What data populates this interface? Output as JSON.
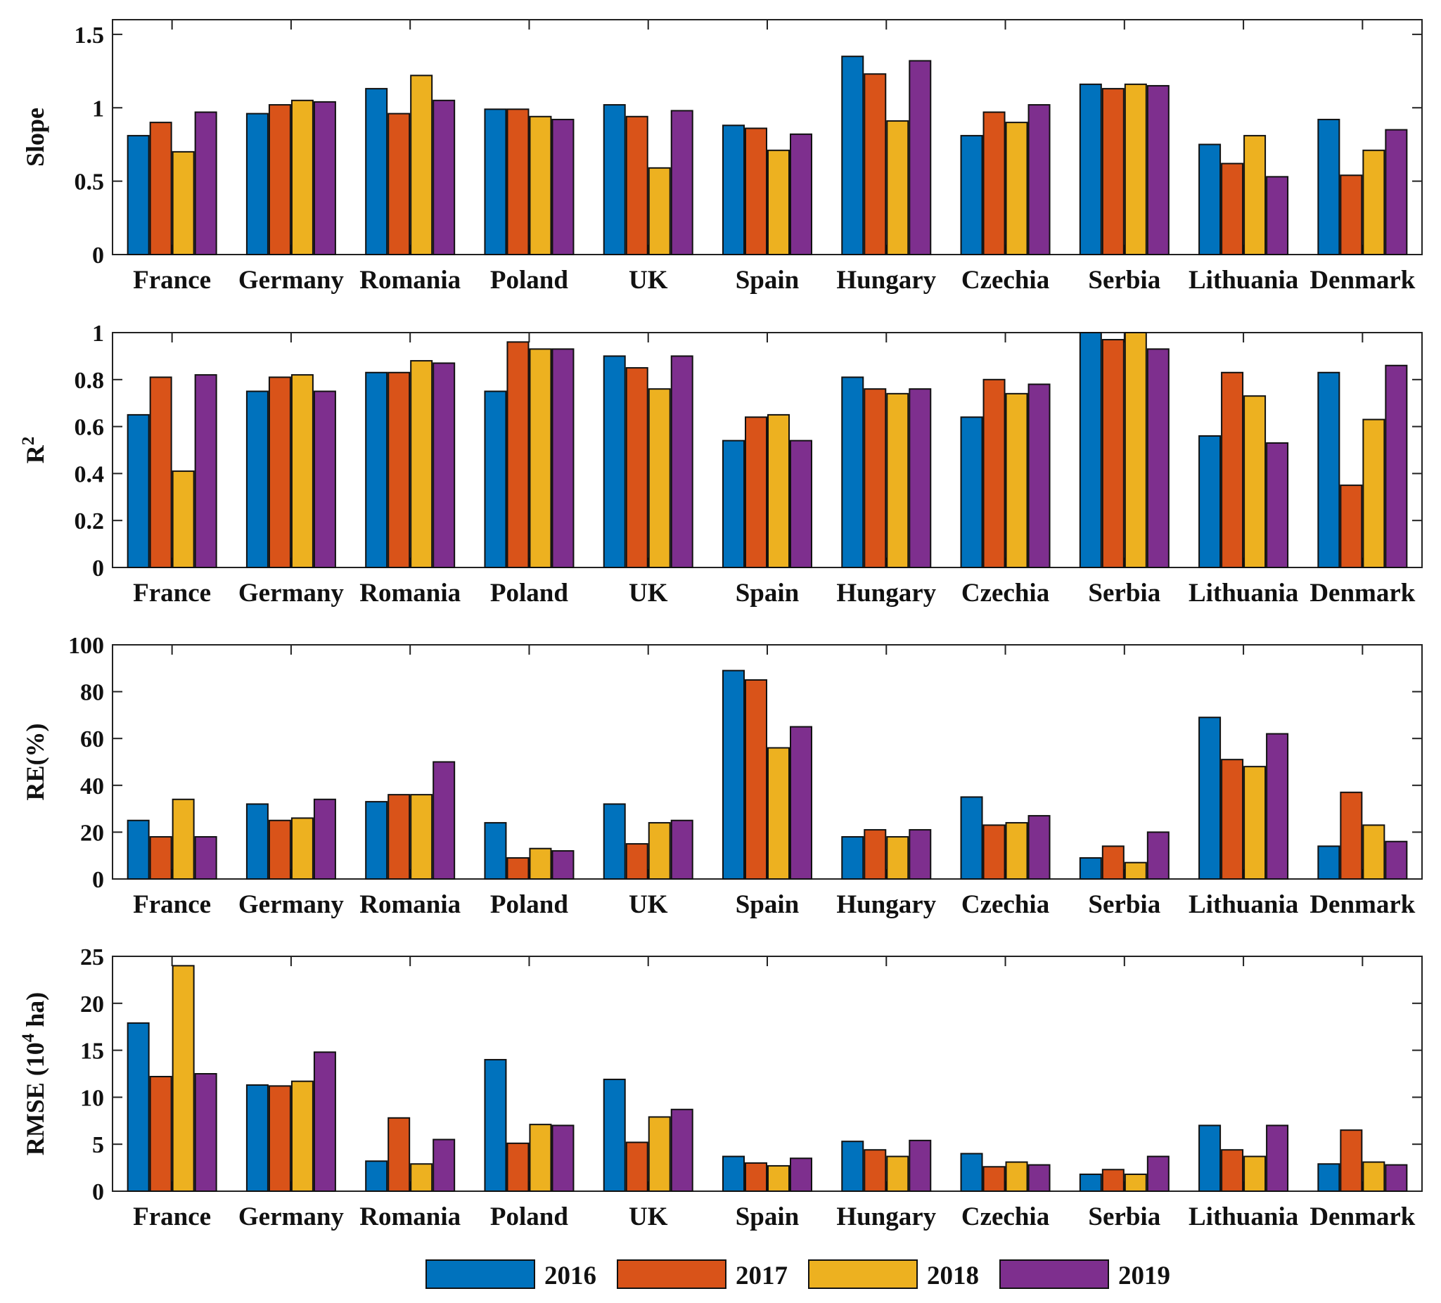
{
  "chart_data": {
    "type": "bar",
    "categories": [
      "France",
      "Germany",
      "Romania",
      "Poland",
      "UK",
      "Spain",
      "Hungary",
      "Czechia",
      "Serbia",
      "Lithuania",
      "Denmark"
    ],
    "legend": {
      "placement": "bottom-center",
      "entries": [
        {
          "name": "2016",
          "color": "#0072BD"
        },
        {
          "name": "2017",
          "color": "#D95319"
        },
        {
          "name": "2018",
          "color": "#EDB120"
        },
        {
          "name": "2019",
          "color": "#7E2F8E"
        }
      ]
    },
    "panels": [
      {
        "id": "slope",
        "ylabel": "Slope",
        "ylim": [
          0,
          1.6
        ],
        "yticks": [
          0,
          0.5,
          1,
          1.5
        ],
        "ytick_labels": [
          "0",
          "0.5",
          "1",
          "1.5"
        ],
        "series": [
          {
            "name": "2016",
            "values": [
              0.81,
              0.96,
              1.13,
              0.99,
              1.02,
              0.88,
              1.35,
              0.81,
              1.16,
              0.75,
              0.92
            ]
          },
          {
            "name": "2017",
            "values": [
              0.9,
              1.02,
              0.96,
              0.99,
              0.94,
              0.86,
              1.23,
              0.97,
              1.13,
              0.62,
              0.54
            ]
          },
          {
            "name": "2018",
            "values": [
              0.7,
              1.05,
              1.22,
              0.94,
              0.59,
              0.71,
              0.91,
              0.9,
              1.16,
              0.81,
              0.71
            ]
          },
          {
            "name": "2019",
            "values": [
              0.97,
              1.04,
              1.05,
              0.92,
              0.98,
              0.82,
              1.32,
              1.02,
              1.15,
              0.53,
              0.85
            ]
          }
        ]
      },
      {
        "id": "r2",
        "ylabel": "R",
        "ylabel_sup": "2",
        "ylim": [
          0,
          1
        ],
        "yticks": [
          0,
          0.2,
          0.4,
          0.6,
          0.8,
          1
        ],
        "ytick_labels": [
          "0",
          "0.2",
          "0.4",
          "0.6",
          "0.8",
          "1"
        ],
        "series": [
          {
            "name": "2016",
            "values": [
              0.65,
              0.75,
              0.83,
              0.75,
              0.9,
              0.54,
              0.81,
              0.64,
              1.0,
              0.56,
              0.83
            ]
          },
          {
            "name": "2017",
            "values": [
              0.81,
              0.81,
              0.83,
              0.96,
              0.85,
              0.64,
              0.76,
              0.8,
              0.97,
              0.83,
              0.35
            ]
          },
          {
            "name": "2018",
            "values": [
              0.41,
              0.82,
              0.88,
              0.93,
              0.76,
              0.65,
              0.74,
              0.74,
              1.0,
              0.73,
              0.63
            ]
          },
          {
            "name": "2019",
            "values": [
              0.82,
              0.75,
              0.87,
              0.93,
              0.9,
              0.54,
              0.76,
              0.78,
              0.93,
              0.53,
              0.86
            ]
          }
        ]
      },
      {
        "id": "re",
        "ylabel": "RE(%)",
        "ylim": [
          0,
          100
        ],
        "yticks": [
          0,
          20,
          40,
          60,
          80,
          100
        ],
        "ytick_labels": [
          "0",
          "20",
          "40",
          "60",
          "80",
          "100"
        ],
        "series": [
          {
            "name": "2016",
            "values": [
              25,
              32,
              33,
              24,
              32,
              89,
              18,
              35,
              9,
              69,
              14
            ]
          },
          {
            "name": "2017",
            "values": [
              18,
              25,
              36,
              9,
              15,
              85,
              21,
              23,
              14,
              51,
              37
            ]
          },
          {
            "name": "2018",
            "values": [
              34,
              26,
              36,
              13,
              24,
              56,
              18,
              24,
              7,
              48,
              23
            ]
          },
          {
            "name": "2019",
            "values": [
              18,
              34,
              50,
              12,
              25,
              65,
              21,
              27,
              20,
              62,
              16
            ]
          }
        ]
      },
      {
        "id": "rmse",
        "ylabel": "RMSE (10",
        "ylabel_sup": "4",
        "ylabel_suffix": " ha)",
        "ylim": [
          0,
          25
        ],
        "yticks": [
          0,
          5,
          10,
          15,
          20,
          25
        ],
        "ytick_labels": [
          "0",
          "5",
          "10",
          "15",
          "20",
          "25"
        ],
        "series": [
          {
            "name": "2016",
            "values": [
              17.9,
              11.3,
              3.2,
              14.0,
              11.9,
              3.7,
              5.3,
              4.0,
              1.8,
              7.0,
              2.9
            ]
          },
          {
            "name": "2017",
            "values": [
              12.2,
              11.2,
              7.8,
              5.1,
              5.2,
              3.0,
              4.4,
              2.6,
              2.3,
              4.4,
              6.5
            ]
          },
          {
            "name": "2018",
            "values": [
              24.0,
              11.7,
              2.9,
              7.1,
              7.9,
              2.7,
              3.7,
              3.1,
              1.8,
              3.7,
              3.1
            ]
          },
          {
            "name": "2019",
            "values": [
              12.5,
              14.8,
              5.5,
              7.0,
              8.7,
              3.5,
              5.4,
              2.8,
              3.7,
              7.0,
              2.8
            ]
          }
        ]
      }
    ]
  }
}
